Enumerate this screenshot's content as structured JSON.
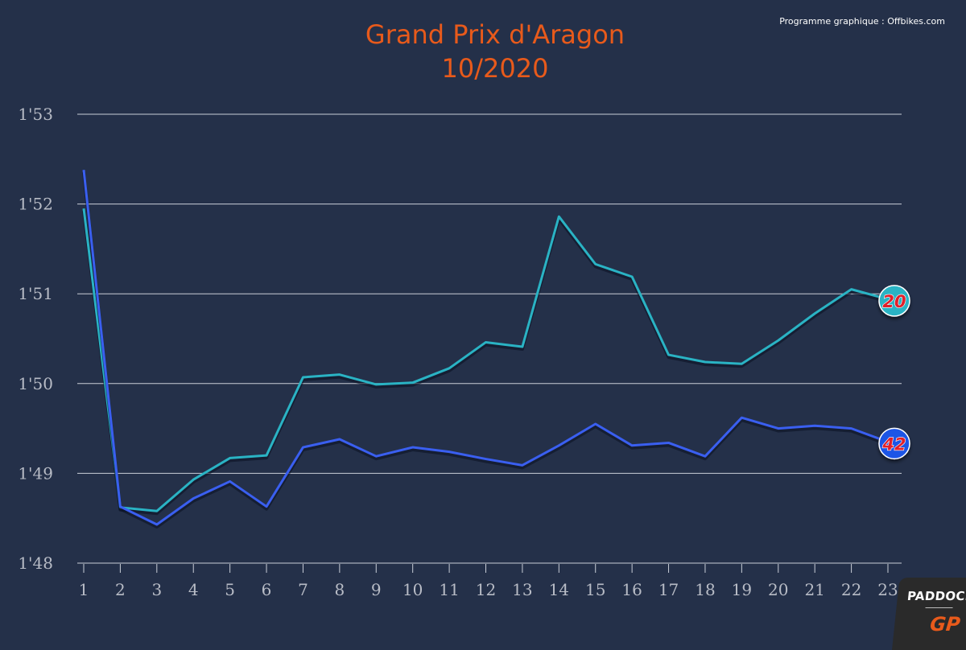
{
  "chart_data": {
    "type": "line",
    "title": "Grand Prix d'Aragon",
    "subtitle": "10/2020",
    "credit": "Programme graphique : Offbikes.com",
    "x_ticks": [
      "1",
      "2",
      "3",
      "4",
      "5",
      "6",
      "7",
      "8",
      "9",
      "10",
      "11",
      "12",
      "13",
      "14",
      "15",
      "16",
      "17",
      "18",
      "19",
      "20",
      "21",
      "22",
      "23"
    ],
    "y_ticks": [
      "1'48",
      "1'49",
      "1'50",
      "1'51",
      "1'52",
      "1'53"
    ],
    "ylim": [
      108,
      113
    ],
    "xlim": [
      1,
      23
    ],
    "grid": true,
    "series": [
      {
        "name": "20",
        "marker_label": "20",
        "color": "#2ab3c4",
        "marker_color": "#2ab3c4",
        "marker_text_color": "#e0202a",
        "x": [
          1,
          2,
          3,
          4,
          5,
          6,
          7,
          8,
          9,
          10,
          11,
          12,
          13,
          14,
          15,
          16,
          17,
          18,
          19,
          20,
          21,
          22,
          23
        ],
        "values": [
          111.95,
          108.62,
          108.58,
          108.93,
          109.17,
          109.2,
          110.07,
          110.1,
          109.99,
          110.01,
          110.17,
          110.46,
          110.41,
          111.86,
          111.33,
          111.19,
          110.32,
          110.24,
          110.22,
          110.48,
          110.78,
          111.05,
          110.94
        ]
      },
      {
        "name": "42",
        "marker_label": "42",
        "color": "#3a5ff0",
        "marker_color": "#1f55e6",
        "marker_text_color": "#e0202a",
        "x": [
          1,
          2,
          3,
          4,
          5,
          6,
          7,
          8,
          9,
          10,
          11,
          12,
          13,
          14,
          15,
          16,
          17,
          18,
          19,
          20,
          21,
          22,
          23
        ],
        "values": [
          112.38,
          108.63,
          108.43,
          108.72,
          108.91,
          108.63,
          109.29,
          109.38,
          109.19,
          109.29,
          109.24,
          109.16,
          109.09,
          109.31,
          109.55,
          109.31,
          109.34,
          109.19,
          109.62,
          109.5,
          109.53,
          109.5,
          109.35
        ]
      }
    ]
  },
  "logo": {
    "top": "PADDOCK",
    "bottom": "GP"
  }
}
